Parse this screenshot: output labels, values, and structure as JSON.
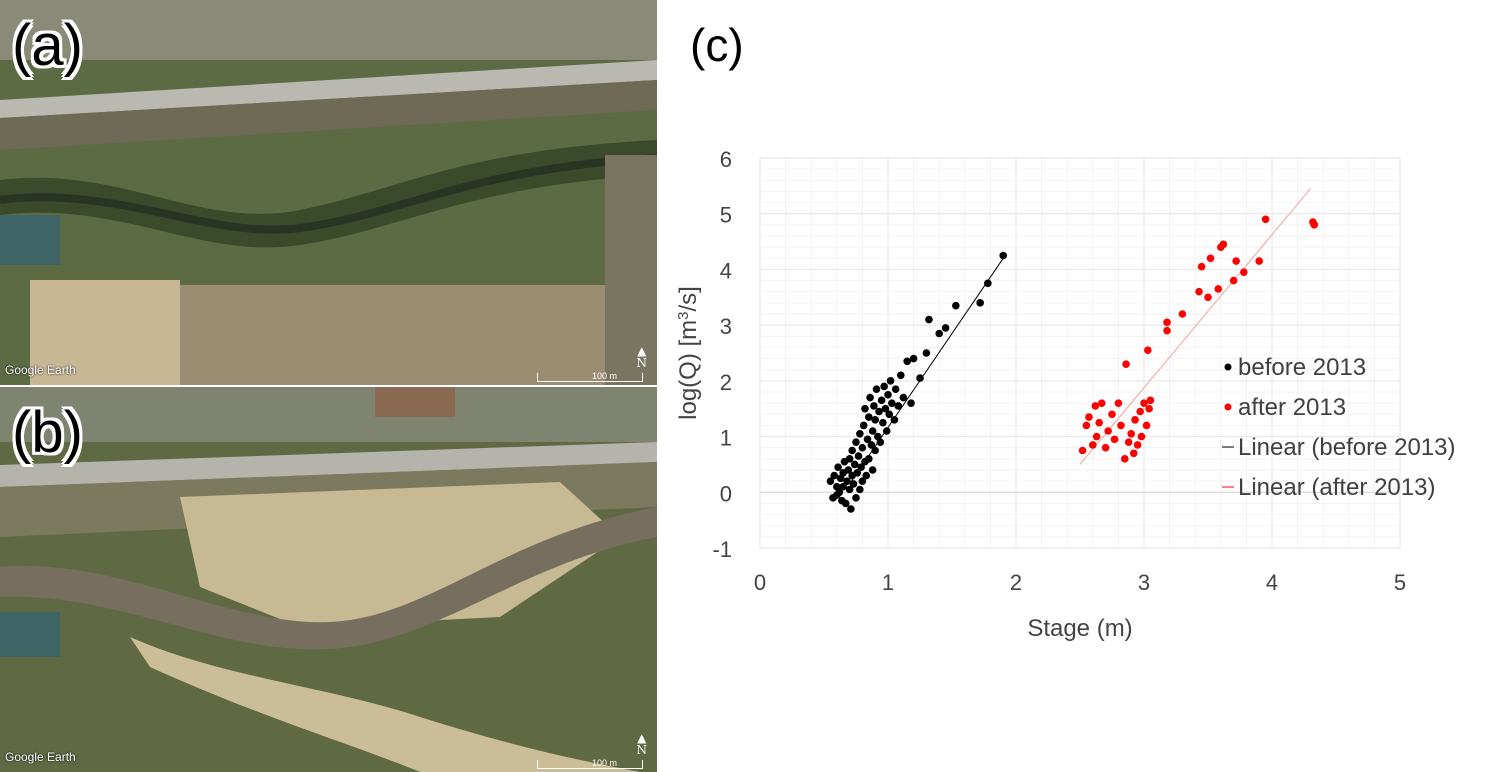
{
  "panels": {
    "a": {
      "letter": "(a)",
      "watermark": "Google Earth",
      "scale": "100 m",
      "north": "N"
    },
    "b": {
      "letter": "(b)",
      "watermark": "Google Earth",
      "scale": "100 m",
      "north": "N"
    },
    "c": {
      "letter": "(c)"
    }
  },
  "colors": {
    "before": "#000000",
    "after": "#ff0000",
    "grid": "#e6e6e6"
  },
  "chart_data": {
    "type": "scatter",
    "title": "",
    "xlabel": "Stage (m)",
    "ylabel_prefix": "log(Q) [m",
    "ylabel_sup": "3",
    "ylabel_suffix": "/s]",
    "xlim": [
      0,
      5
    ],
    "ylim": [
      -1,
      6
    ],
    "xticks": [
      "0",
      "1",
      "2",
      "3",
      "4",
      "5"
    ],
    "yticks": [
      "-1",
      "0",
      "1",
      "2",
      "3",
      "4",
      "5",
      "6"
    ],
    "grid": true,
    "legend_position": "right",
    "legend": [
      "before 2013",
      "after 2013",
      "Linear (before 2013)",
      "Linear (after 2013)"
    ],
    "series": [
      {
        "name": "before 2013",
        "type": "scatter",
        "points": [
          [
            0.55,
            0.2
          ],
          [
            0.57,
            -0.1
          ],
          [
            0.58,
            0.3
          ],
          [
            0.6,
            0.1
          ],
          [
            0.6,
            -0.05
          ],
          [
            0.61,
            0.45
          ],
          [
            0.62,
            0.0
          ],
          [
            0.63,
            0.25
          ],
          [
            0.64,
            -0.15
          ],
          [
            0.65,
            0.35
          ],
          [
            0.65,
            0.1
          ],
          [
            0.66,
            0.55
          ],
          [
            0.67,
            -0.2
          ],
          [
            0.68,
            0.2
          ],
          [
            0.69,
            0.4
          ],
          [
            0.7,
            0.05
          ],
          [
            0.7,
            0.6
          ],
          [
            0.71,
            -0.3
          ],
          [
            0.72,
            0.3
          ],
          [
            0.72,
            0.75
          ],
          [
            0.73,
            0.15
          ],
          [
            0.74,
            0.5
          ],
          [
            0.75,
            -0.1
          ],
          [
            0.75,
            0.9
          ],
          [
            0.76,
            0.35
          ],
          [
            0.77,
            0.65
          ],
          [
            0.78,
            0.05
          ],
          [
            0.78,
            1.05
          ],
          [
            0.79,
            0.45
          ],
          [
            0.8,
            0.8
          ],
          [
            0.8,
            0.2
          ],
          [
            0.81,
            1.2
          ],
          [
            0.82,
            0.55
          ],
          [
            0.82,
            1.5
          ],
          [
            0.83,
            0.3
          ],
          [
            0.84,
            0.95
          ],
          [
            0.85,
            1.35
          ],
          [
            0.85,
            0.6
          ],
          [
            0.86,
            1.7
          ],
          [
            0.87,
            0.85
          ],
          [
            0.88,
            1.1
          ],
          [
            0.88,
            0.4
          ],
          [
            0.89,
            1.55
          ],
          [
            0.9,
            0.75
          ],
          [
            0.9,
            1.3
          ],
          [
            0.91,
            1.85
          ],
          [
            0.92,
            1.0
          ],
          [
            0.93,
            1.45
          ],
          [
            0.94,
            0.9
          ],
          [
            0.95,
            1.65
          ],
          [
            0.96,
            1.25
          ],
          [
            0.97,
            1.9
          ],
          [
            0.98,
            1.5
          ],
          [
            0.99,
            1.1
          ],
          [
            1.0,
            1.75
          ],
          [
            1.01,
            1.4
          ],
          [
            1.02,
            2.0
          ],
          [
            1.03,
            1.6
          ],
          [
            1.05,
            1.3
          ],
          [
            1.06,
            1.85
          ],
          [
            1.08,
            1.55
          ],
          [
            1.1,
            2.1
          ],
          [
            1.12,
            1.7
          ],
          [
            1.15,
            2.35
          ],
          [
            1.18,
            1.6
          ],
          [
            1.2,
            2.4
          ],
          [
            1.25,
            2.05
          ],
          [
            1.3,
            2.5
          ],
          [
            1.32,
            3.1
          ],
          [
            1.4,
            2.85
          ],
          [
            1.45,
            2.95
          ],
          [
            1.53,
            3.35
          ],
          [
            1.72,
            3.4
          ],
          [
            1.78,
            3.75
          ],
          [
            1.9,
            4.25
          ]
        ]
      },
      {
        "name": "after 2013",
        "type": "scatter",
        "points": [
          [
            2.52,
            0.75
          ],
          [
            2.55,
            1.2
          ],
          [
            2.57,
            1.35
          ],
          [
            2.6,
            0.85
          ],
          [
            2.62,
            1.55
          ],
          [
            2.63,
            1.0
          ],
          [
            2.65,
            1.25
          ],
          [
            2.67,
            1.6
          ],
          [
            2.7,
            0.8
          ],
          [
            2.72,
            1.1
          ],
          [
            2.75,
            1.4
          ],
          [
            2.77,
            0.95
          ],
          [
            2.8,
            1.6
          ],
          [
            2.82,
            1.2
          ],
          [
            2.85,
            0.6
          ],
          [
            2.86,
            2.3
          ],
          [
            2.88,
            0.9
          ],
          [
            2.9,
            1.05
          ],
          [
            2.92,
            0.7
          ],
          [
            2.93,
            1.3
          ],
          [
            2.95,
            0.85
          ],
          [
            2.97,
            1.45
          ],
          [
            2.98,
            1.0
          ],
          [
            3.0,
            1.6
          ],
          [
            3.02,
            1.2
          ],
          [
            3.03,
            2.55
          ],
          [
            3.04,
            1.5
          ],
          [
            3.05,
            1.65
          ],
          [
            3.18,
            2.9
          ],
          [
            3.18,
            3.05
          ],
          [
            3.3,
            3.2
          ],
          [
            3.43,
            3.6
          ],
          [
            3.45,
            4.05
          ],
          [
            3.5,
            3.5
          ],
          [
            3.52,
            4.2
          ],
          [
            3.58,
            3.65
          ],
          [
            3.6,
            4.4
          ],
          [
            3.62,
            4.45
          ],
          [
            3.7,
            3.8
          ],
          [
            3.72,
            4.15
          ],
          [
            3.78,
            3.95
          ],
          [
            3.9,
            4.15
          ],
          [
            3.95,
            4.9
          ],
          [
            4.32,
            4.85
          ],
          [
            4.33,
            4.8
          ]
        ]
      },
      {
        "name": "Linear (before 2013)",
        "type": "line",
        "points": [
          [
            0.7,
            0.15
          ],
          [
            1.9,
            4.2
          ]
        ]
      },
      {
        "name": "Linear (after 2013)",
        "type": "line",
        "points": [
          [
            2.5,
            0.5
          ],
          [
            4.3,
            5.45
          ]
        ]
      }
    ]
  }
}
